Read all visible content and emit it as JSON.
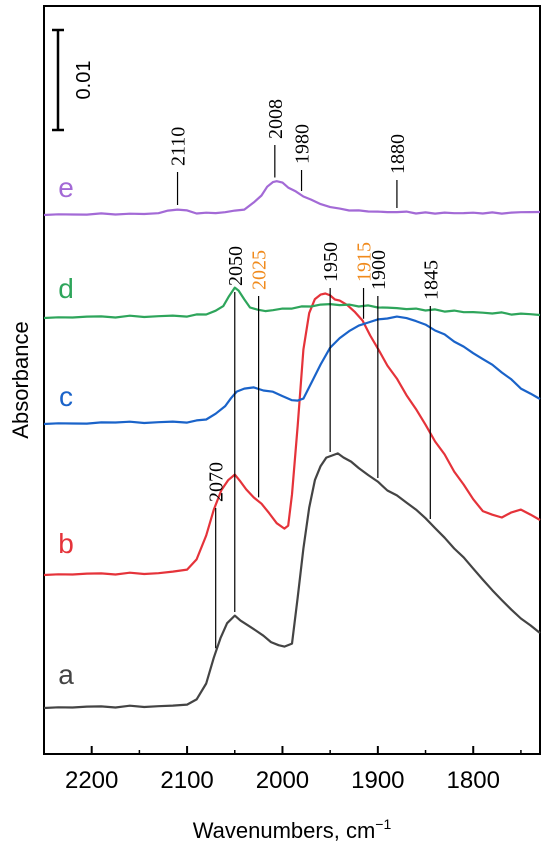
{
  "chart_data": {
    "type": "line",
    "xlabel": "Wavenumbers, cm",
    "xlabel_sup": "−1",
    "ylabel": "Absorbance",
    "xlim": [
      2250,
      1730
    ],
    "x_ticks": [
      2200,
      2100,
      2000,
      1900,
      1800
    ],
    "x_tick_labels": [
      "2200",
      "2100",
      "2000",
      "1900",
      "1800"
    ],
    "scale_bar": {
      "value": 0.01,
      "label": "0.01"
    },
    "series": [
      {
        "name": "a",
        "color": "#444444",
        "x": [
          2250,
          2235,
          2220,
          2205,
          2190,
          2175,
          2160,
          2145,
          2130,
          2115,
          2100,
          2090,
          2080,
          2072,
          2065,
          2058,
          2050,
          2044,
          2036,
          2028,
          2020,
          2012,
          2004,
          1998,
          1990,
          1984,
          1978,
          1972,
          1966,
          1960,
          1954,
          1948,
          1942,
          1936,
          1928,
          1920,
          1910,
          1900,
          1890,
          1880,
          1870,
          1860,
          1850,
          1840,
          1830,
          1820,
          1810,
          1800,
          1790,
          1780,
          1770,
          1760,
          1750,
          1740,
          1730
        ],
        "y": [
          0.0,
          0.0001,
          0.0,
          0.0002,
          0.0001,
          0.0001,
          0.0002,
          0.0001,
          0.0002,
          0.0002,
          0.0004,
          0.0008,
          0.0025,
          0.005,
          0.007,
          0.0085,
          0.0092,
          0.0088,
          0.0082,
          0.0078,
          0.0072,
          0.0066,
          0.0063,
          0.0061,
          0.0065,
          0.011,
          0.016,
          0.02,
          0.0228,
          0.0242,
          0.025,
          0.0253,
          0.0254,
          0.0251,
          0.0246,
          0.024,
          0.0233,
          0.0226,
          0.0218,
          0.0212,
          0.0206,
          0.0198,
          0.019,
          0.018,
          0.017,
          0.016,
          0.015,
          0.014,
          0.0128,
          0.0118,
          0.0108,
          0.0098,
          0.009,
          0.0082,
          0.0075
        ]
      },
      {
        "name": "b",
        "color": "#e5333a",
        "x": [
          2250,
          2235,
          2220,
          2205,
          2190,
          2175,
          2160,
          2145,
          2130,
          2115,
          2100,
          2090,
          2080,
          2072,
          2064,
          2057,
          2050,
          2044,
          2038,
          2030,
          2022,
          2014,
          2006,
          1998,
          1994,
          1990,
          1984,
          1978,
          1972,
          1966,
          1960,
          1955,
          1950,
          1945,
          1940,
          1932,
          1924,
          1916,
          1908,
          1900,
          1890,
          1880,
          1870,
          1860,
          1850,
          1840,
          1830,
          1820,
          1810,
          1800,
          1790,
          1780,
          1770,
          1760,
          1750,
          1740,
          1730
        ],
        "y": [
          0.0,
          0.0001,
          0.0,
          0.0002,
          0.0001,
          0.0001,
          0.0002,
          0.0001,
          0.0002,
          0.0003,
          0.0006,
          0.0015,
          0.004,
          0.0065,
          0.0085,
          0.0095,
          0.01,
          0.0094,
          0.0085,
          0.0078,
          0.0071,
          0.0062,
          0.0052,
          0.0046,
          0.005,
          0.008,
          0.015,
          0.0225,
          0.0262,
          0.0276,
          0.028,
          0.0282,
          0.0279,
          0.0276,
          0.0274,
          0.027,
          0.0263,
          0.0254,
          0.024,
          0.0226,
          0.021,
          0.0196,
          0.018,
          0.0166,
          0.015,
          0.0134,
          0.012,
          0.0104,
          0.009,
          0.0076,
          0.0064,
          0.006,
          0.0058,
          0.0062,
          0.0066,
          0.006,
          0.0055
        ]
      },
      {
        "name": "c",
        "color": "#1a63c9",
        "x": [
          2250,
          2235,
          2220,
          2205,
          2190,
          2175,
          2160,
          2145,
          2130,
          2115,
          2100,
          2090,
          2080,
          2070,
          2060,
          2054,
          2048,
          2040,
          2030,
          2020,
          2010,
          2000,
          1990,
          1984,
          1978,
          1970,
          1960,
          1950,
          1940,
          1930,
          1920,
          1910,
          1900,
          1890,
          1880,
          1870,
          1860,
          1850,
          1840,
          1830,
          1820,
          1810,
          1800,
          1790,
          1780,
          1770,
          1760,
          1750,
          1740,
          1730
        ],
        "y": [
          0.0,
          0.0001,
          0.0,
          0.0001,
          0.0001,
          0.0002,
          0.0002,
          0.0001,
          0.0002,
          0.0002,
          0.0002,
          0.0003,
          0.0005,
          0.001,
          0.0018,
          0.0026,
          0.0032,
          0.0036,
          0.0036,
          0.0034,
          0.0032,
          0.0028,
          0.0024,
          0.0023,
          0.0026,
          0.004,
          0.006,
          0.0076,
          0.0086,
          0.0093,
          0.0098,
          0.0102,
          0.0104,
          0.0106,
          0.0107,
          0.0106,
          0.0103,
          0.0099,
          0.0094,
          0.0089,
          0.0083,
          0.0077,
          0.0071,
          0.0065,
          0.0059,
          0.0052,
          0.0044,
          0.0036,
          0.003,
          0.0025
        ]
      },
      {
        "name": "d",
        "color": "#2ea55b",
        "x": [
          2250,
          2235,
          2220,
          2205,
          2190,
          2175,
          2160,
          2145,
          2130,
          2115,
          2100,
          2090,
          2080,
          2070,
          2062,
          2056,
          2050,
          2046,
          2040,
          2034,
          2026,
          2018,
          2010,
          2000,
          1990,
          1980,
          1970,
          1960,
          1950,
          1940,
          1930,
          1920,
          1910,
          1900,
          1890,
          1880,
          1870,
          1860,
          1850,
          1840,
          1830,
          1820,
          1810,
          1800,
          1790,
          1780,
          1770,
          1760,
          1750,
          1740,
          1730
        ],
        "y": [
          0.0,
          0.0001,
          0.0,
          0.0002,
          0.0001,
          0.0001,
          0.0002,
          0.0001,
          0.0002,
          0.0002,
          0.0002,
          0.0003,
          0.0004,
          0.0007,
          0.0012,
          0.0022,
          0.003,
          0.0028,
          0.0018,
          0.0011,
          0.0008,
          0.0007,
          0.0008,
          0.0009,
          0.001,
          0.0011,
          0.0012,
          0.0013,
          0.0014,
          0.0013,
          0.0013,
          0.0012,
          0.0012,
          0.0011,
          0.001,
          0.001,
          0.0009,
          0.0009,
          0.0008,
          0.0008,
          0.0007,
          0.0007,
          0.0006,
          0.0006,
          0.0005,
          0.0005,
          0.0005,
          0.0004,
          0.0004,
          0.0004,
          0.0003
        ]
      },
      {
        "name": "e",
        "color": "#a36ad6",
        "x": [
          2250,
          2235,
          2220,
          2205,
          2190,
          2175,
          2160,
          2145,
          2130,
          2120,
          2110,
          2100,
          2090,
          2080,
          2070,
          2060,
          2050,
          2040,
          2030,
          2022,
          2016,
          2010,
          2006,
          2000,
          1994,
          1986,
          1978,
          1970,
          1960,
          1950,
          1940,
          1930,
          1920,
          1910,
          1900,
          1890,
          1880,
          1870,
          1860,
          1850,
          1840,
          1830,
          1820,
          1810,
          1800,
          1790,
          1780,
          1770,
          1760,
          1750,
          1740,
          1730
        ],
        "y": [
          0.0,
          0.0001,
          0.0,
          0.0001,
          0.0001,
          0.0001,
          0.0001,
          0.0001,
          0.0002,
          0.0004,
          0.0006,
          0.0004,
          0.0002,
          0.0002,
          0.0002,
          0.0003,
          0.0004,
          0.0006,
          0.0012,
          0.002,
          0.0028,
          0.0033,
          0.0034,
          0.0032,
          0.0028,
          0.0023,
          0.0019,
          0.0015,
          0.0011,
          0.0008,
          0.0006,
          0.0005,
          0.0004,
          0.0004,
          0.0003,
          0.0003,
          0.0003,
          0.0003,
          0.0002,
          0.0002,
          0.0002,
          0.0002,
          0.0002,
          0.0002,
          0.0002,
          0.0002,
          0.0002,
          0.0002,
          0.0002,
          0.0003,
          0.0003,
          0.0003
        ]
      }
    ],
    "annotations": [
      {
        "label": "2110",
        "series": "e",
        "x": 2110,
        "color": "#000000"
      },
      {
        "label": "2008",
        "series": "e",
        "x": 2008,
        "color": "#000000"
      },
      {
        "label": "1980",
        "series": "e",
        "x": 1980,
        "color": "#000000"
      },
      {
        "label": "1880",
        "series": "e",
        "x": 1880,
        "color": "#000000"
      },
      {
        "label": "2070",
        "series": "a",
        "x": 2070,
        "color": "#000000"
      },
      {
        "label": "2050",
        "series": "a",
        "x": 2050,
        "color": "#000000"
      },
      {
        "label": "2025",
        "series": "b",
        "x": 2025,
        "color": "#f08a1c"
      },
      {
        "label": "1950",
        "series": "a",
        "x": 1950,
        "color": "#000000"
      },
      {
        "label": "1915",
        "series": "b",
        "x": 1915,
        "color": "#f08a1c"
      },
      {
        "label": "1900",
        "series": "a",
        "x": 1900,
        "color": "#000000"
      },
      {
        "label": "1845",
        "series": "a",
        "x": 1845,
        "color": "#000000"
      }
    ]
  }
}
